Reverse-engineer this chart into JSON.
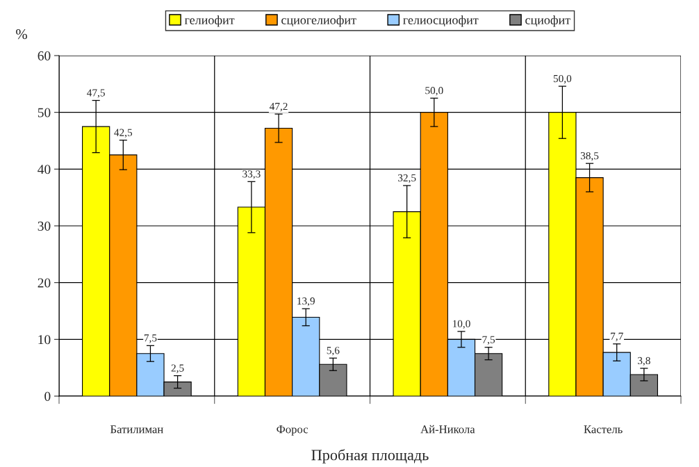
{
  "chart_data": {
    "type": "bar",
    "xlabel": "Пробная площадь",
    "ylabel": "%",
    "categories": [
      "Батилиман",
      "Форос",
      "Ай-Никола",
      "Кастель"
    ],
    "series": [
      {
        "name": "гелиофит",
        "color": "#ffff00",
        "values": [
          47.5,
          33.3,
          32.5,
          50.0
        ],
        "errors": [
          4.6,
          4.5,
          4.6,
          4.6
        ],
        "value_labels": [
          "47,5",
          "33,3",
          "32,5",
          "50,0"
        ]
      },
      {
        "name": "сциогелиофит",
        "color": "#ff9900",
        "values": [
          42.5,
          47.2,
          50.0,
          38.5
        ],
        "errors": [
          2.6,
          2.5,
          2.5,
          2.5
        ],
        "value_labels": [
          "42,5",
          "47,2",
          "50,0",
          "38,5"
        ]
      },
      {
        "name": "гелиосциофит",
        "color": "#99ccff",
        "values": [
          7.5,
          13.9,
          10.0,
          7.7
        ],
        "errors": [
          1.4,
          1.5,
          1.4,
          1.5
        ],
        "value_labels": [
          "7,5",
          "13,9",
          "10,0",
          "7,7"
        ]
      },
      {
        "name": "сциофит",
        "color": "#808080",
        "values": [
          2.5,
          5.6,
          7.5,
          3.8
        ],
        "errors": [
          1.1,
          1.1,
          1.1,
          1.1
        ],
        "value_labels": [
          "2,5",
          "5,6",
          "7,5",
          "3,8"
        ]
      }
    ],
    "ylim": [
      0,
      60
    ],
    "yticks": [
      0,
      10,
      20,
      30,
      40,
      50,
      60
    ],
    "grid": true,
    "legend": "top"
  }
}
